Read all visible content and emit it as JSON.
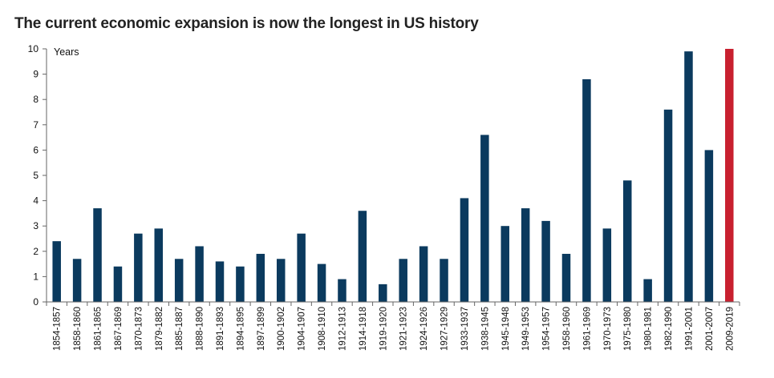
{
  "title": "The current economic expansion is now the longest in US history",
  "chart_data": {
    "type": "bar",
    "title": "The current economic expansion is now the longest in US history",
    "ylabel": "Years",
    "ylim": [
      0,
      10
    ],
    "yticks": [
      0,
      1,
      2,
      3,
      4,
      5,
      6,
      7,
      8,
      9,
      10
    ],
    "categories": [
      "1854-1857",
      "1858-1860",
      "1861-1865",
      "1867-1869",
      "1870-1873",
      "1879-1882",
      "1885-1887",
      "1888-1890",
      "1891-1893",
      "1894-1895",
      "1897-1899",
      "1900-1902",
      "1904-1907",
      "1908-1910",
      "1912-1913",
      "1914-1918",
      "1919-1920",
      "1921-1923",
      "1924-1926",
      "1927-1929",
      "1933-1937",
      "1938-1945",
      "1945-1948",
      "1949-1953",
      "1954-1957",
      "1958-1960",
      "1961-1969",
      "1970-1973",
      "1975-1980",
      "1980-1981",
      "1982-1990",
      "1991-2001",
      "2001-2007",
      "2009-2019"
    ],
    "values": [
      2.4,
      1.7,
      3.7,
      1.4,
      2.7,
      2.9,
      1.7,
      2.2,
      1.6,
      1.4,
      1.9,
      1.7,
      2.7,
      1.5,
      0.9,
      3.6,
      0.7,
      1.7,
      2.2,
      1.7,
      4.1,
      6.6,
      3.0,
      3.7,
      3.2,
      1.9,
      8.8,
      2.9,
      4.8,
      0.9,
      7.6,
      9.9,
      6.0,
      10.0
    ],
    "colors": {
      "default": "#0b3a5e",
      "highlight": "#c8202f"
    },
    "highlight_index": 33,
    "grid": false,
    "legend": "none"
  }
}
